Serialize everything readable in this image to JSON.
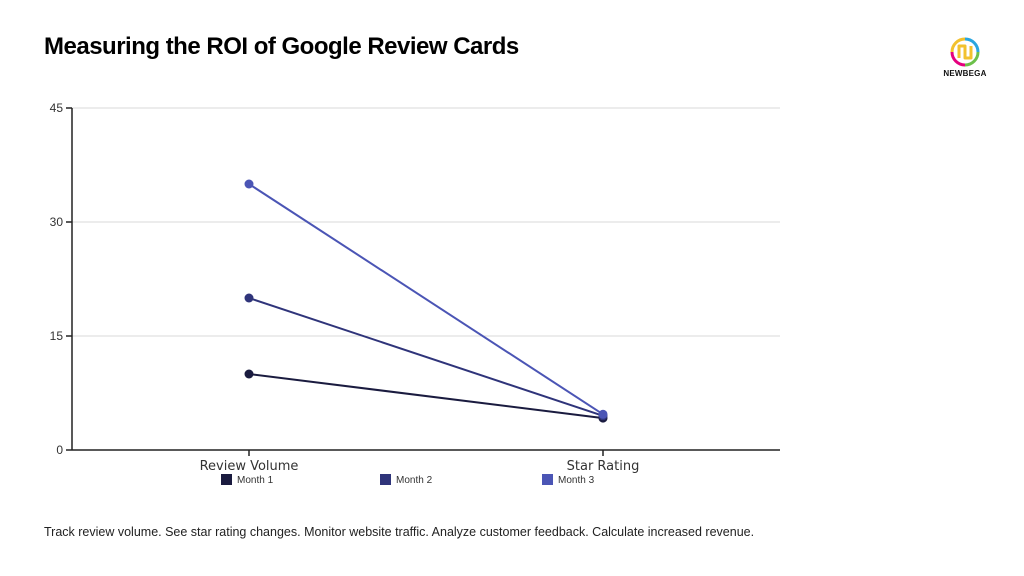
{
  "title": "Measuring the ROI of Google Review Cards",
  "logo": {
    "text": "NEWBEGA",
    "colors": [
      "#f2c12e",
      "#2aa6df",
      "#e5007e",
      "#6cc04a"
    ]
  },
  "chart_data": {
    "type": "line",
    "categories": [
      "Review Volume",
      "Star Rating"
    ],
    "ylim": [
      0,
      45
    ],
    "yticks": [
      0,
      15,
      30,
      45
    ],
    "grid": true,
    "legend_position": "bottom",
    "series": [
      {
        "name": "Month 1",
        "values": [
          10,
          4.2
        ],
        "color": "#1a1b3f"
      },
      {
        "name": "Month 2",
        "values": [
          20,
          4.5
        ],
        "color": "#2f347a"
      },
      {
        "name": "Month 3",
        "values": [
          35,
          4.7
        ],
        "color": "#4b55b5"
      }
    ]
  },
  "footer": "Track review volume. See star rating changes. Monitor website traffic. Analyze customer feedback. Calculate increased revenue."
}
